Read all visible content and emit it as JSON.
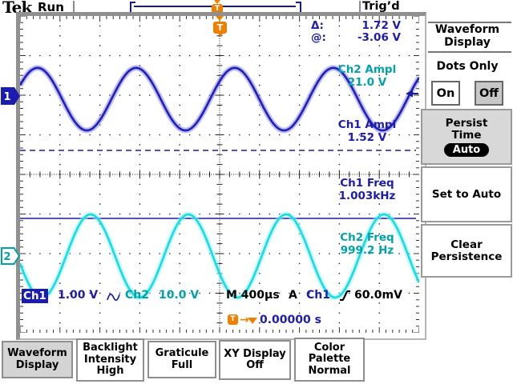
{
  "header": {
    "logo": "Tek",
    "acq_status": "Run",
    "trigger_status": "Trig’d",
    "record_trigger_marker": "T"
  },
  "cursor_readout": {
    "delta_label": "Δ:",
    "delta_value": "1.72 V",
    "at_label": "@:",
    "at_value": "-3.06 V"
  },
  "measurements": [
    {
      "label": "Ch2 Ampl",
      "value": "21.0 V"
    },
    {
      "label": "Ch1 Ampl",
      "value": "1.52 V"
    },
    {
      "label": "Ch1 Freq",
      "value": "1.003kHz"
    },
    {
      "label": "Ch2 Freq",
      "value": "999.2 Hz"
    }
  ],
  "channel_markers": {
    "ch1": "1",
    "ch2": "2"
  },
  "trigger_marker_label": "T",
  "status_bar": {
    "ch1_label": "Ch1",
    "ch1_scale": "1.00 V",
    "ch1_coupling_icon": "sine-wave",
    "ch2_label": "Ch2",
    "ch2_scale": "10.0 V",
    "timebase": "M 400µs",
    "trigger_mode_prefix": "A",
    "trigger_source": "Ch1",
    "trigger_slope_icon": "rising-edge",
    "trigger_level": "60.0mV",
    "delay_marker": "T",
    "delay_arrow": "→",
    "delay_time": "0.00000 s"
  },
  "side_menu": {
    "title_line1": "Waveform",
    "title_line2": "Display",
    "dots_only_label": "Dots Only",
    "on_label": "On",
    "off_label": "Off",
    "buttons": [
      {
        "lines": [
          "Persist",
          "Time"
        ],
        "pill": "Auto",
        "selected": true
      },
      {
        "lines": [
          "Set to Auto"
        ],
        "selected": false
      },
      {
        "lines": [
          "Clear",
          "Persistence"
        ],
        "selected": false
      }
    ]
  },
  "bottom_menu": [
    {
      "lines": [
        "Waveform",
        "Display"
      ],
      "selected": true
    },
    {
      "lines": [
        "Backlight",
        "Intensity",
        "High"
      ],
      "selected": false
    },
    {
      "lines": [
        "Graticule",
        "Full"
      ],
      "selected": false
    },
    {
      "lines": [
        "XY Display",
        "Off"
      ],
      "selected": false
    },
    {
      "lines": [
        "Color",
        "Palette",
        "Normal"
      ],
      "selected": false
    }
  ],
  "colors": {
    "ch1": "#2222b8",
    "ch1_glow": "#8080e8",
    "ch2": "#17dde4",
    "ch2_glow": "#9af2f5",
    "navy_text": "#1c1cb0",
    "teal_text": "#00a2aa",
    "orange": "#ef7f00",
    "frame_gray": "#909090",
    "button_gray": "#d4d4d4"
  },
  "chart_data": {
    "type": "line",
    "title": "Oscilloscope traces (10 x 8 division graticule)",
    "x_units": "time, 400 µs/div, trigger at center",
    "y_units": "vertical divisions",
    "series": [
      {
        "name": "Ch1",
        "volts_per_div": "1.00 V",
        "measured_amplitude": "1.52 V",
        "measured_freq": "1.003kHz",
        "center_div": 2.1,
        "half_amp_div": 0.79,
        "period_div": 2.47,
        "rising_cross_div": 4.76
      },
      {
        "name": "Ch2",
        "volts_per_div": "10.0 V",
        "measured_amplitude": "21.0 V",
        "measured_freq": "999.2 Hz",
        "center_div": 6.06,
        "half_amp_div": 1.05,
        "period_div": 2.45,
        "rising_cross_div": 1.155
      }
    ],
    "cursors": {
      "style": "horizontal-bars",
      "dashed_div": 3.394,
      "solid_div": 5.111,
      "delta": "1.72 V",
      "at": "-3.06 V"
    },
    "trigger": {
      "level": "60.0mV",
      "arrow_div": 1.96,
      "position_div": 5.0
    },
    "graticule": {
      "columns": 10,
      "rows": 8,
      "mode": "Full"
    }
  }
}
